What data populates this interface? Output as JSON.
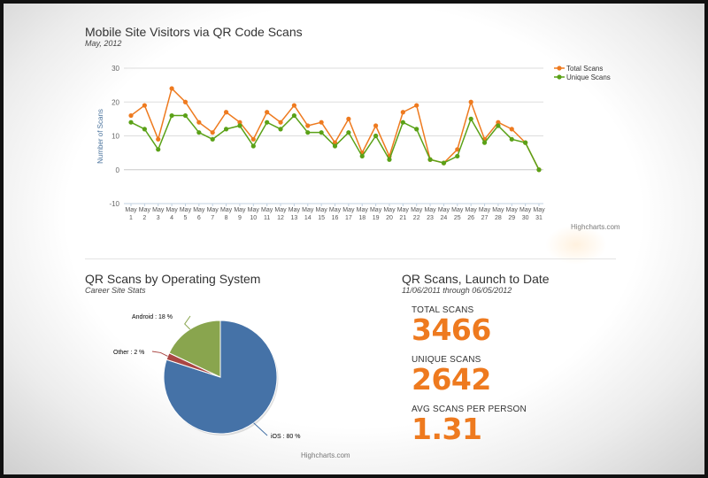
{
  "line_chart": {
    "title": "Mobile Site Visitors via QR Code Scans",
    "subtitle": "May, 2012",
    "credit": "Highcharts.com"
  },
  "pie_chart": {
    "title": "QR Scans by Operating System",
    "subtitle": "Career Site Stats",
    "credit": "Highcharts.com"
  },
  "stats": {
    "title": "QR Scans, Launch to Date",
    "subtitle": "11/06/2011 through 06/05/2012",
    "total_label": "TOTAL SCANS",
    "total_value": "3466",
    "unique_label": "UNIQUE SCANS",
    "unique_value": "2642",
    "avg_label": "AVG SCANS PER PERSON",
    "avg_value": "1.31"
  },
  "chart_data": [
    {
      "type": "line",
      "title": "Mobile Site Visitors via QR Code Scans",
      "subtitle": "May, 2012",
      "xlabel": "",
      "ylabel": "Number of Scans",
      "categories": [
        "May 1",
        "May 2",
        "May 3",
        "May 4",
        "May 5",
        "May 6",
        "May 7",
        "May 8",
        "May 9",
        "May 10",
        "May 11",
        "May 12",
        "May 13",
        "May 14",
        "May 15",
        "May 16",
        "May 17",
        "May 18",
        "May 19",
        "May 20",
        "May 21",
        "May 22",
        "May 23",
        "May 24",
        "May 25",
        "May 26",
        "May 27",
        "May 28",
        "May 29",
        "May 30",
        "May 31"
      ],
      "series": [
        {
          "name": "Total Scans",
          "color": "#ee7a1f",
          "values": [
            16,
            19,
            9,
            24,
            20,
            14,
            11,
            17,
            14,
            9,
            17,
            14,
            19,
            13,
            14,
            8,
            15,
            5,
            13,
            4,
            17,
            19,
            3,
            2,
            6,
            20,
            9,
            14,
            12,
            8,
            0
          ]
        },
        {
          "name": "Unique Scans",
          "color": "#5aa117",
          "values": [
            14,
            12,
            6,
            16,
            16,
            11,
            9,
            12,
            13,
            7,
            14,
            12,
            16,
            11,
            11,
            7,
            11,
            4,
            10,
            3,
            14,
            12,
            3,
            2,
            4,
            15,
            8,
            13,
            9,
            8,
            0
          ]
        }
      ],
      "ylim": [
        -10,
        30
      ],
      "yticks": [
        -10,
        0,
        10,
        20,
        30
      ],
      "grid": true,
      "legend": "top-right"
    },
    {
      "type": "pie",
      "title": "QR Scans by Operating System",
      "subtitle": "Career Site Stats",
      "slices": [
        {
          "name": "iOS",
          "value": 80,
          "label": "iOS : 80 %",
          "color": "#4572a7"
        },
        {
          "name": "Other",
          "value": 2,
          "label": "Other : 2 %",
          "color": "#aa4643"
        },
        {
          "name": "Android",
          "value": 18,
          "label": "Android : 18 %",
          "color": "#89a54e"
        }
      ]
    }
  ]
}
